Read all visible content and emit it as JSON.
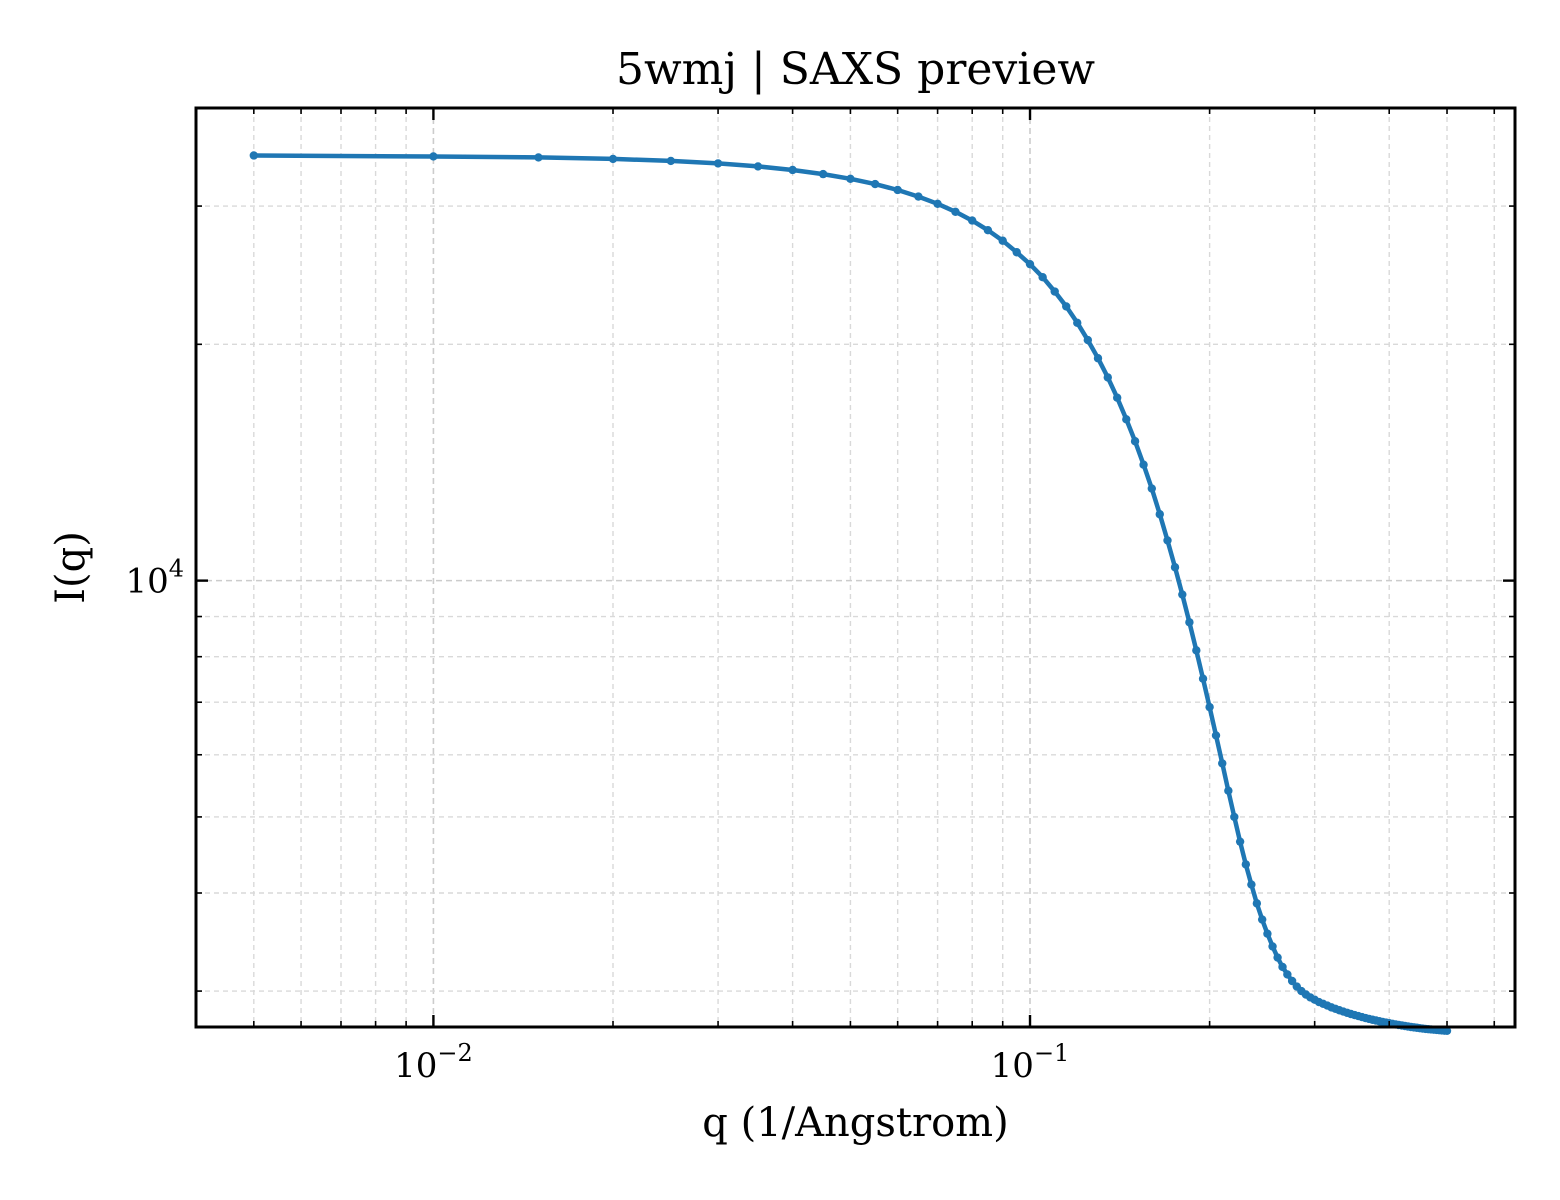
{
  "chart_data": {
    "type": "line",
    "title": "5wmj | SAXS preview",
    "xlabel": "q (1/Angstrom)",
    "ylabel": "I(q)",
    "xscale": "log",
    "yscale": "log",
    "xlim": [
      0.004,
      0.65
    ],
    "ylim": [
      2700,
      40000
    ],
    "grid": true,
    "legend": "none",
    "series_color": "#1f77b4",
    "x_ticks": [
      {
        "base": "10",
        "exp": "−2",
        "value": 0.01
      },
      {
        "base": "10",
        "exp": "−1",
        "value": 0.1
      }
    ],
    "y_ticks": [
      {
        "base": "10",
        "exp": "4",
        "value": 10000
      }
    ],
    "series": [
      {
        "x": [
          0.005,
          0.01,
          0.015,
          0.02,
          0.025,
          0.03,
          0.035,
          0.04,
          0.045,
          0.05,
          0.055,
          0.06,
          0.065,
          0.07,
          0.075,
          0.08,
          0.085,
          0.09,
          0.095,
          0.1,
          0.105,
          0.11,
          0.115,
          0.12,
          0.125,
          0.13,
          0.135,
          0.14,
          0.145,
          0.15,
          0.155,
          0.16,
          0.165,
          0.17,
          0.175,
          0.18,
          0.185,
          0.19,
          0.195,
          0.2,
          0.205,
          0.21,
          0.215,
          0.22,
          0.225,
          0.23,
          0.235,
          0.24,
          0.245,
          0.25,
          0.255,
          0.26,
          0.265,
          0.27,
          0.275,
          0.28,
          0.285,
          0.29,
          0.295,
          0.3,
          0.305,
          0.31,
          0.315,
          0.32,
          0.325,
          0.33,
          0.335,
          0.34,
          0.345,
          0.35,
          0.355,
          0.36,
          0.365,
          0.37,
          0.375,
          0.38,
          0.385,
          0.39,
          0.395,
          0.4,
          0.405,
          0.41,
          0.415,
          0.42,
          0.425,
          0.43,
          0.435,
          0.44,
          0.445,
          0.45,
          0.455,
          0.46,
          0.465,
          0.47,
          0.475,
          0.48,
          0.485,
          0.49,
          0.495,
          0.5
        ],
        "y": [
          34800,
          34700,
          34600,
          34450,
          34250,
          34000,
          33700,
          33350,
          32950,
          32500,
          32000,
          31450,
          30850,
          30200,
          29500,
          28750,
          27950,
          27100,
          26200,
          25300,
          24350,
          23350,
          22350,
          21300,
          20250,
          19200,
          18150,
          17100,
          16050,
          15050,
          14050,
          13100,
          12150,
          11250,
          10400,
          9600,
          8850,
          8150,
          7500,
          6900,
          6350,
          5850,
          5400,
          5000,
          4650,
          4350,
          4100,
          3880,
          3700,
          3550,
          3420,
          3310,
          3220,
          3150,
          3090,
          3040,
          3000,
          2970,
          2945,
          2925,
          2905,
          2890,
          2875,
          2860,
          2848,
          2836,
          2825,
          2815,
          2805,
          2796,
          2788,
          2780,
          2772,
          2765,
          2758,
          2752,
          2746,
          2740,
          2735,
          2730,
          2725,
          2720,
          2716,
          2712,
          2708,
          2704,
          2700,
          2697,
          2694,
          2691,
          2688,
          2685,
          2683,
          2681,
          2679,
          2677,
          2675,
          2673,
          2671,
          2670
        ]
      }
    ]
  }
}
